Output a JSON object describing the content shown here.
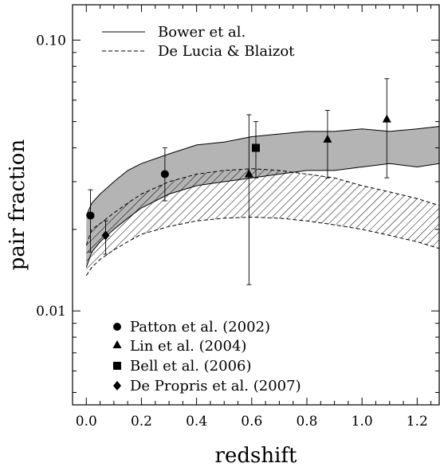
{
  "chart_data": {
    "type": "scatter",
    "xlabel": "redshift",
    "ylabel": "pair fraction",
    "xlim": [
      -0.05,
      1.28
    ],
    "ylim": [
      0.0045,
      0.135
    ],
    "y_scale": "log",
    "x_ticks": [
      "0.0",
      "0.2",
      "0.4",
      "0.6",
      "0.8",
      "1.0",
      "1.2"
    ],
    "x_tick_values": [
      0.0,
      0.2,
      0.4,
      0.6,
      0.8,
      1.0,
      1.2
    ],
    "y_major_ticks": [
      "0.01",
      "0.10"
    ],
    "y_major_tick_values": [
      0.01,
      0.1
    ],
    "grid": false,
    "legend_top": {
      "placement": "top-left",
      "entries": [
        {
          "label": "Bower et al.",
          "style": "solid"
        },
        {
          "label": "De Lucia & Blaizot",
          "style": "dashed"
        }
      ]
    },
    "legend_bottom": {
      "placement": "bottom-left",
      "entries": [
        {
          "label": "Patton et al. (2002)",
          "marker": "circle"
        },
        {
          "label": "Lin et al. (2004)",
          "marker": "triangle"
        },
        {
          "label": "Bell et al. (2006)",
          "marker": "square"
        },
        {
          "label": "De Propris et al. (2007)",
          "marker": "diamond"
        }
      ]
    },
    "bands": [
      {
        "name": "Bower et al.",
        "fill": "#b4b4b4",
        "style": "solid",
        "x": [
          0.0,
          0.02,
          0.05,
          0.1,
          0.15,
          0.2,
          0.3,
          0.4,
          0.5,
          0.6,
          0.7,
          0.8,
          0.9,
          1.0,
          1.1,
          1.2,
          1.28
        ],
        "upper": [
          0.0225,
          0.025,
          0.027,
          0.03,
          0.033,
          0.035,
          0.038,
          0.041,
          0.042,
          0.044,
          0.045,
          0.046,
          0.046,
          0.047,
          0.046,
          0.047,
          0.048
        ],
        "lower": [
          0.0145,
          0.0165,
          0.018,
          0.02,
          0.022,
          0.024,
          0.027,
          0.029,
          0.03,
          0.031,
          0.032,
          0.033,
          0.033,
          0.034,
          0.035,
          0.034,
          0.035
        ]
      },
      {
        "name": "De Lucia & Blaizot",
        "fill": "hatch",
        "style": "dashed",
        "x": [
          0.0,
          0.02,
          0.05,
          0.1,
          0.15,
          0.2,
          0.3,
          0.4,
          0.5,
          0.6,
          0.7,
          0.8,
          0.9,
          1.0,
          1.1,
          1.2,
          1.28
        ],
        "upper": [
          0.0175,
          0.02,
          0.021,
          0.023,
          0.025,
          0.027,
          0.03,
          0.032,
          0.033,
          0.0335,
          0.033,
          0.032,
          0.031,
          0.029,
          0.0275,
          0.026,
          0.0245
        ],
        "lower": [
          0.0135,
          0.0145,
          0.0155,
          0.0168,
          0.018,
          0.0192,
          0.0205,
          0.0215,
          0.022,
          0.0222,
          0.022,
          0.0215,
          0.0208,
          0.02,
          0.019,
          0.018,
          0.017
        ]
      }
    ],
    "series": [
      {
        "name": "Patton et al. (2002)",
        "marker": "circle",
        "points": [
          {
            "x": 0.015,
            "y": 0.0225,
            "ylo": 0.0165,
            "yhi": 0.028
          },
          {
            "x": 0.285,
            "y": 0.032,
            "ylo": 0.0255,
            "yhi": 0.04
          }
        ]
      },
      {
        "name": "Lin et al. (2004)",
        "marker": "triangle",
        "points": [
          {
            "x": 0.59,
            "y": 0.032,
            "ylo": 0.0125,
            "yhi": 0.053
          },
          {
            "x": 0.875,
            "y": 0.043,
            "ylo": 0.031,
            "yhi": 0.055
          },
          {
            "x": 1.09,
            "y": 0.051,
            "ylo": 0.031,
            "yhi": 0.072
          }
        ]
      },
      {
        "name": "Bell et al. (2006)",
        "marker": "square",
        "points": [
          {
            "x": 0.615,
            "y": 0.04,
            "ylo": 0.031,
            "yhi": 0.05
          }
        ]
      },
      {
        "name": "De Propris et al. (2007)",
        "marker": "diamond",
        "points": [
          {
            "x": 0.07,
            "y": 0.019,
            "ylo": 0.0162,
            "yhi": 0.0215
          }
        ]
      }
    ]
  }
}
